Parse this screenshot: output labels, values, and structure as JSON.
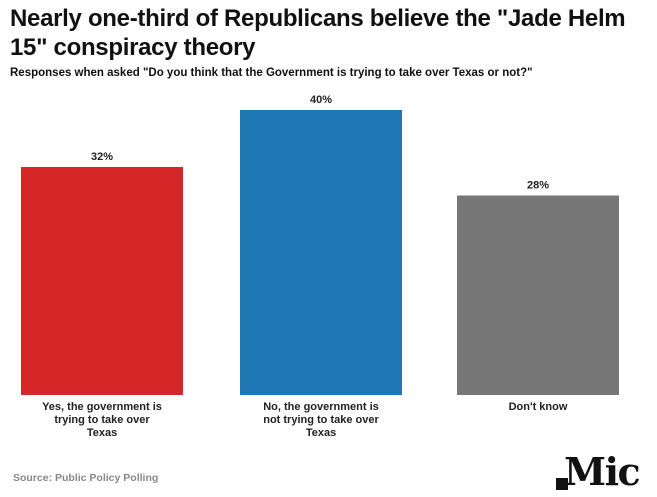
{
  "chart_data": {
    "type": "bar",
    "title": "Nearly one-third of Republicans believe the \"Jade Helm 15\" conspiracy theory",
    "subtitle": "Responses when asked \"Do you think that the Government is trying to take over Texas or not?\"",
    "categories": [
      [
        "Yes, the government is",
        "trying to take over",
        "Texas"
      ],
      [
        "No, the government is",
        "not trying to take over",
        "Texas"
      ],
      [
        "Don't know"
      ]
    ],
    "values": [
      32,
      40,
      28
    ],
    "value_labels": [
      "32%",
      "40%",
      "28%"
    ],
    "colors": [
      "#d62728",
      "#1f77b4",
      "#777777"
    ],
    "xlabel": "",
    "ylabel": "",
    "ylim": [
      0,
      40
    ],
    "grid": false,
    "legend": "none"
  },
  "footer": {
    "source": "Source: Public Policy Polling",
    "logo_text": "Mic"
  }
}
